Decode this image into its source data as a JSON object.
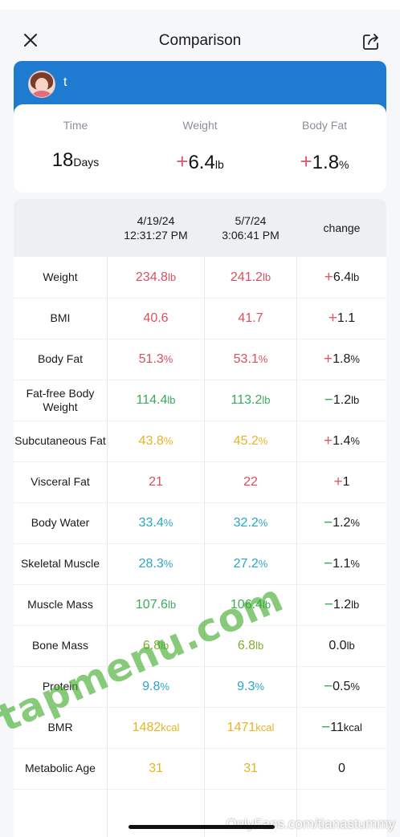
{
  "nav": {
    "title": "Comparison"
  },
  "user": {
    "name": "t"
  },
  "summary": [
    {
      "label": "Time",
      "sign": "",
      "value": "18",
      "unit": "Days"
    },
    {
      "label": "Weight",
      "sign": "+",
      "value": "6.4",
      "unit": "lb"
    },
    {
      "label": "Body Fat",
      "sign": "+",
      "value": "1.8",
      "unit": "%"
    }
  ],
  "table": {
    "headers": [
      {
        "date": "4/19/24",
        "time": "12:31:27 PM"
      },
      {
        "date": "5/7/24",
        "time": "3:06:41 PM"
      },
      {
        "label": "change"
      }
    ],
    "rows": [
      {
        "metric": "Weight",
        "v1": "234.8",
        "v2": "241.2",
        "unit": "lb",
        "sign": "+",
        "change": "6.4",
        "change_unit": "lb",
        "color": "#d9505f"
      },
      {
        "metric": "BMI",
        "v1": "40.6",
        "v2": "41.7",
        "unit": "",
        "sign": "+",
        "change": "1.1",
        "change_unit": "",
        "color": "#d9505f"
      },
      {
        "metric": "Body Fat",
        "v1": "51.3",
        "v2": "53.1",
        "unit": "%",
        "sign": "+",
        "change": "1.8",
        "change_unit": "%",
        "color": "#d9505f"
      },
      {
        "metric": "Fat-free Body Weight",
        "v1": "114.4",
        "v2": "113.2",
        "unit": "lb",
        "sign": "−",
        "change": "1.2",
        "change_unit": "lb",
        "color": "#3bab5a"
      },
      {
        "metric": "Subcutaneous Fat",
        "v1": "43.8",
        "v2": "45.2",
        "unit": "%",
        "sign": "+",
        "change": "1.4",
        "change_unit": "%",
        "color": "#e6b422"
      },
      {
        "metric": "Visceral Fat",
        "v1": "21",
        "v2": "22",
        "unit": "",
        "sign": "+",
        "change": "1",
        "change_unit": "",
        "color": "#d9505f"
      },
      {
        "metric": "Body Water",
        "v1": "33.4",
        "v2": "32.2",
        "unit": "%",
        "sign": "−",
        "change": "1.2",
        "change_unit": "%",
        "color": "#27a7c6"
      },
      {
        "metric": "Skeletal Muscle",
        "v1": "28.3",
        "v2": "27.2",
        "unit": "%",
        "sign": "−",
        "change": "1.1",
        "change_unit": "%",
        "color": "#27a7c6"
      },
      {
        "metric": "Muscle Mass",
        "v1": "107.6",
        "v2": "106.4",
        "unit": "lb",
        "sign": "−",
        "change": "1.2",
        "change_unit": "lb",
        "color": "#3bab5a"
      },
      {
        "metric": "Bone Mass",
        "v1": "6.8",
        "v2": "6.8",
        "unit": "lb",
        "sign": "",
        "change": "0.0",
        "change_unit": "lb",
        "color": "#7fae2a"
      },
      {
        "metric": "Protein",
        "v1": "9.8",
        "v2": "9.3",
        "unit": "%",
        "sign": "−",
        "change": "0.5",
        "change_unit": "%",
        "color": "#27a7c6"
      },
      {
        "metric": "BMR",
        "v1": "1482",
        "v2": "1471",
        "unit": "kcal",
        "sign": "−",
        "change": "11",
        "change_unit": "kcal",
        "color": "#e6b422"
      },
      {
        "metric": "Metabolic Age",
        "v1": "31",
        "v2": "31",
        "unit": "",
        "sign": "",
        "change": "0",
        "change_unit": "",
        "color": "#e6b422"
      }
    ]
  },
  "colors": {
    "increase": "#e05a6e",
    "decrease": "#3bab5a",
    "header": "#1e7bd0"
  },
  "watermark": "tapmenu.com",
  "of_tag": "OnlyFans.com/tianastummy"
}
